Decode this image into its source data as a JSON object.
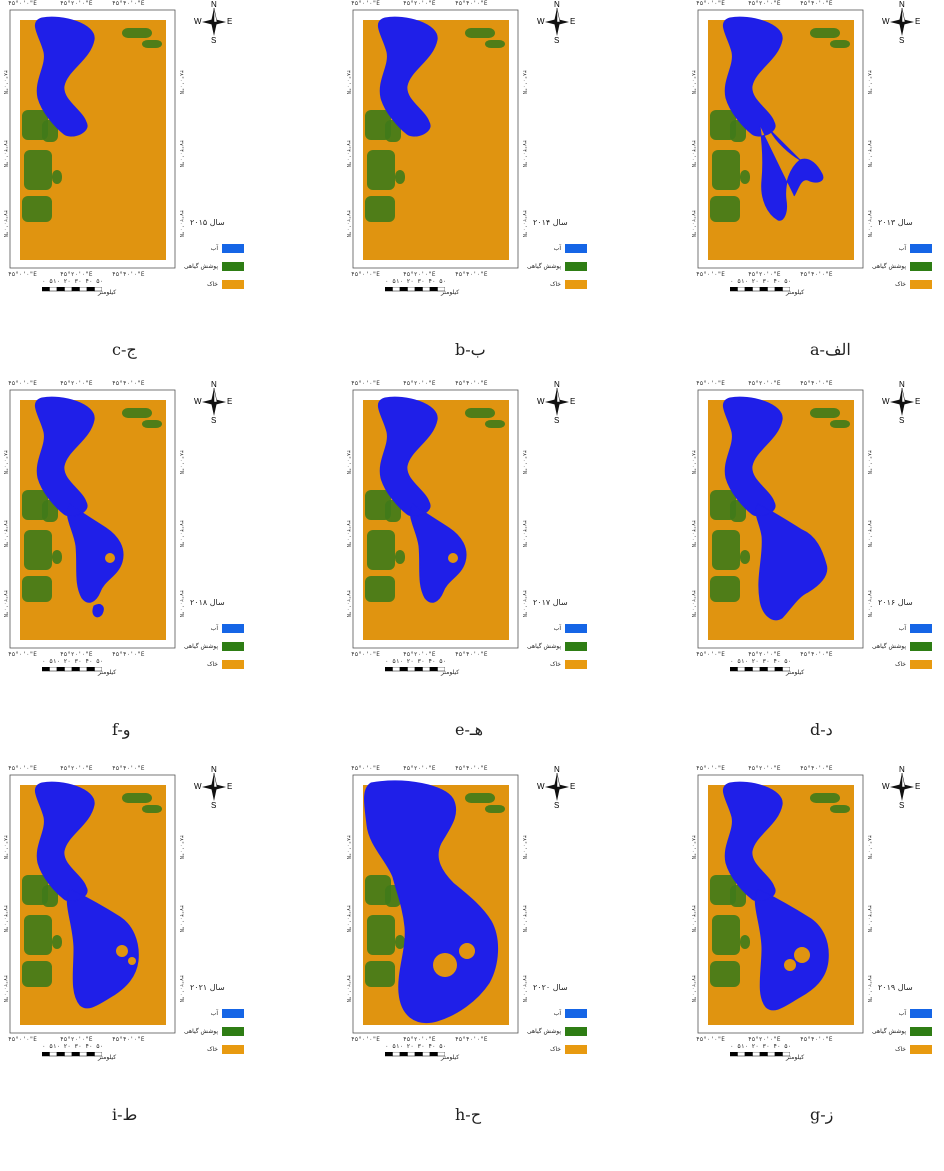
{
  "panels": [
    {
      "year_label": "سال ۲۰۱۵",
      "caption": "c-ج",
      "lake": "c"
    },
    {
      "year_label": "سال ۲۰۱۴",
      "caption": "b-ب",
      "lake": "b"
    },
    {
      "year_label": "سال ۲۰۱۳",
      "caption": "a-الف",
      "lake": "a"
    },
    {
      "year_label": "سال ۲۰۱۸",
      "caption": "f-و",
      "lake": "f"
    },
    {
      "year_label": "سال ۲۰۱۷",
      "caption": "e-هـ",
      "lake": "e"
    },
    {
      "year_label": "سال ۲۰۱۶",
      "caption": "d-د",
      "lake": "d"
    },
    {
      "year_label": "سال ۲۰۲۱",
      "caption": "i-ط",
      "lake": "i"
    },
    {
      "year_label": "سال ۲۰۲۰",
      "caption": "h-ح",
      "lake": "h"
    },
    {
      "year_label": "سال ۲۰۱۹",
      "caption": "g-ز",
      "lake": "g"
    }
  ],
  "map_common": {
    "top_ticks": [
      "۴۵°۰'۰\"E",
      "۴۵°۲۰'۰\"E",
      "۴۵°۴۰'۰\"E"
    ],
    "bottom_ticks": [
      "۴۵°۰'۰\"E",
      "۴۵°۲۰'۰\"E",
      "۴۵°۴۰'۰\"E"
    ],
    "side_ticks": [
      "۳۸°۰'۰\"N",
      "۳۷°۴۰'۰\"N",
      "۳۷°۲۰'۰\"N"
    ],
    "compass": {
      "n": "N",
      "s": "S",
      "e": "E",
      "w": "W"
    },
    "legend": [
      {
        "label": "آب",
        "color": "#1565e6"
      },
      {
        "label": "پوشش گیاهی",
        "color": "#2e7d14"
      },
      {
        "label": "خاک",
        "color": "#e89a10"
      }
    ],
    "scale_numbers": "۰ ۵۱۰  ۲۰  ۳۰  ۴۰  ۵۰",
    "scale_unit": "کیلومتر"
  },
  "colors": {
    "water": "#1f1fe8",
    "vegetation": "#3f7a1a",
    "soil": "#e09410",
    "frame": "#555555"
  }
}
